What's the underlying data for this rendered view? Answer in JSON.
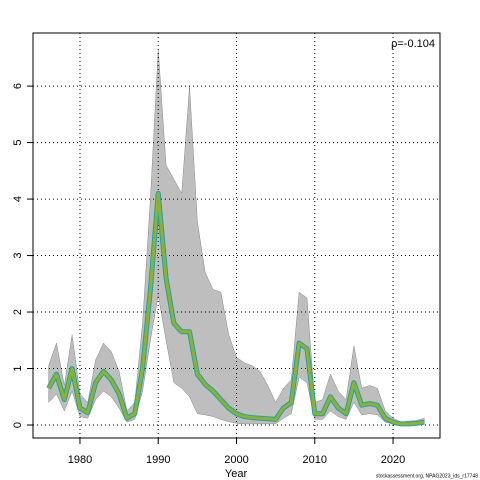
{
  "chart_data": {
    "type": "line",
    "x_label": "Year",
    "annotation": "ρ=-0.104",
    "footer": "stockassessment.org, NPAG2023_ids_r17748",
    "x": [
      1976,
      1977,
      1978,
      1979,
      1980,
      1981,
      1982,
      1983,
      1984,
      1985,
      1986,
      1987,
      1988,
      1989,
      1990,
      1991,
      1992,
      1993,
      1994,
      1995,
      1996,
      1997,
      1998,
      1999,
      2000,
      2001,
      2002,
      2003,
      2004,
      2005,
      2006,
      2007,
      2008,
      2009,
      2010,
      2011,
      2012,
      2013,
      2014,
      2015,
      2016,
      2017,
      2018,
      2019,
      2020,
      2021,
      2022,
      2023,
      2024
    ],
    "series": [
      {
        "color": "#8db32e",
        "values": [
          0.65,
          0.9,
          0.45,
          1.0,
          0.3,
          0.22,
          0.75,
          0.95,
          0.8,
          0.55,
          0.12,
          0.2,
          1.0,
          2.4,
          4.1,
          2.6,
          1.8,
          1.65,
          1.65,
          0.9,
          0.72,
          0.6,
          0.45,
          0.3,
          0.2,
          0.15,
          0.13,
          0.12,
          0.11,
          0.1,
          0.3,
          0.4,
          1.45,
          1.35,
          0.2,
          0.2,
          0.5,
          0.3,
          0.2,
          0.75,
          0.35,
          0.38,
          0.35,
          0.12,
          0.05,
          0.02,
          0.02,
          0.03,
          0.05
        ]
      }
    ],
    "band": {
      "color": "#bebebe",
      "upper": [
        1.05,
        1.45,
        0.7,
        1.6,
        0.55,
        0.4,
        1.15,
        1.45,
        1.3,
        0.95,
        0.25,
        0.4,
        1.8,
        4.0,
        6.65,
        4.6,
        4.35,
        4.1,
        6.0,
        3.6,
        2.7,
        2.4,
        2.35,
        1.6,
        1.2,
        1.1,
        1.05,
        0.95,
        0.7,
        0.4,
        0.65,
        0.8,
        2.35,
        2.25,
        0.4,
        0.45,
        0.9,
        0.6,
        0.45,
        1.4,
        0.65,
        0.7,
        0.65,
        0.25,
        0.12,
        0.05,
        0.07,
        0.08,
        0.12
      ],
      "lower": [
        0.4,
        0.55,
        0.25,
        0.6,
        0.15,
        0.12,
        0.45,
        0.6,
        0.5,
        0.3,
        0.05,
        0.1,
        0.6,
        1.5,
        2.3,
        1.5,
        0.75,
        0.65,
        0.5,
        0.2,
        0.18,
        0.15,
        0.1,
        0.06,
        0.03,
        0.02,
        0.02,
        0.02,
        0.02,
        0.02,
        0.12,
        0.2,
        0.85,
        0.75,
        0.1,
        0.1,
        0.25,
        0.15,
        0.1,
        0.4,
        0.18,
        0.2,
        0.18,
        0.05,
        0.02,
        0.01,
        0.01,
        0.01,
        0.02
      ]
    },
    "xlim": [
      1974,
      2026
    ],
    "ylim": [
      -0.23,
      6.94
    ],
    "xticks": [
      1980,
      1990,
      2000,
      2010,
      2020
    ],
    "yticks": [
      0,
      1,
      2,
      3,
      4,
      5,
      6
    ],
    "grid": true
  }
}
